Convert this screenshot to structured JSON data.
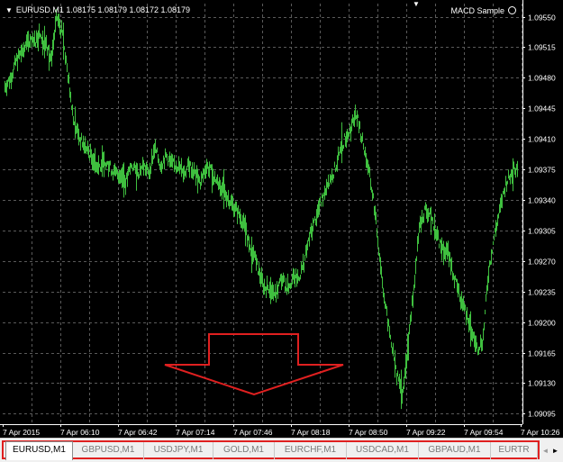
{
  "chart": {
    "symbol_info": "EURUSD,M1  1.08175 1.08179 1.08172 1.08179",
    "expert_label": "MACD Sample",
    "price_axis": [
      "1.09550",
      "1.09515",
      "1.09480",
      "1.09445",
      "1.09410",
      "1.09375",
      "1.09340",
      "1.09305",
      "1.09270",
      "1.09235",
      "1.09200",
      "1.09165",
      "1.09130",
      "1.09095"
    ],
    "time_axis": [
      "7 Apr 2015",
      "7 Apr 06:10",
      "7 Apr 06:42",
      "7 Apr 07:14",
      "7 Apr 07:46",
      "7 Apr 08:18",
      "7 Apr 08:50",
      "7 Apr 09:22",
      "7 Apr 09:54",
      "7 Apr 10:26"
    ],
    "colors": {
      "background": "#000000",
      "grid": "#5a5a5a",
      "bars": "#3fbf3f",
      "axis": "#ffffff",
      "annotation": "#e02020"
    },
    "price_series": [
      1.0947,
      1.0948,
      1.095,
      1.0951,
      1.0952,
      1.0952,
      1.0953,
      1.0952,
      1.095,
      1.0955,
      1.0953,
      1.0948,
      1.0943,
      1.0941,
      1.094,
      1.0939,
      1.0938,
      1.0938,
      1.0938,
      1.0937,
      1.0937,
      1.0936,
      1.0938,
      1.0937,
      1.0938,
      1.0937,
      1.094,
      1.0938,
      1.0939,
      1.0938,
      1.0938,
      1.0937,
      1.0938,
      1.0937,
      1.0936,
      1.0938,
      1.0937,
      1.0936,
      1.0935,
      1.0934,
      1.0933,
      1.0932,
      1.093,
      1.0928,
      1.0926,
      1.0924,
      1.0924,
      1.0923,
      1.0925,
      1.0924,
      1.0925,
      1.0925,
      1.0927,
      1.093,
      1.0932,
      1.0934,
      1.0936,
      1.0937,
      1.0939,
      1.0941,
      1.0942,
      1.0944,
      1.0941,
      1.0938,
      1.0934,
      1.0928,
      1.0922,
      1.0918,
      1.0914,
      1.0912,
      1.0917,
      1.0924,
      1.0931,
      1.0933,
      1.0932,
      1.093,
      1.0928,
      1.0928,
      1.0925,
      1.0923,
      1.0921,
      1.0919,
      1.0917,
      1.0918,
      1.0926,
      1.093,
      1.0933,
      1.0936,
      1.0937,
      1.0938
    ]
  },
  "annotation": {
    "arrow": "down-arrow"
  },
  "tabs": [
    {
      "label": "EURUSD,M1",
      "active": true
    },
    {
      "label": "GBPUSD,M1",
      "active": false
    },
    {
      "label": "USDJPY,M1",
      "active": false
    },
    {
      "label": "GOLD,M1",
      "active": false
    },
    {
      "label": "EURCHF,M1",
      "active": false
    },
    {
      "label": "USDCAD,M1",
      "active": false
    },
    {
      "label": "GBPAUD,M1",
      "active": false
    },
    {
      "label": "EURTR",
      "active": false
    }
  ],
  "tab_nav": {
    "left": "◄",
    "right": "►"
  }
}
